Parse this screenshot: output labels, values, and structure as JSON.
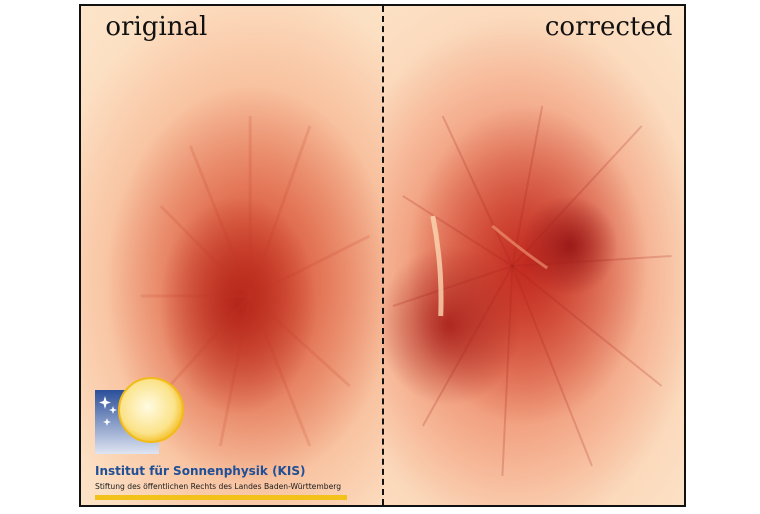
{
  "panels": {
    "left_title": "original",
    "right_title": "corrected"
  },
  "logo": {
    "institute_name": "Institut für Sonnenphysik (KIS)",
    "tagline": "Stiftung des öffentlichen Rechts des Landes Baden-Württemberg",
    "colors": {
      "name": "#1f4f97",
      "bar": "#f2c21b",
      "sun": "#f8c326"
    }
  },
  "colors": {
    "background_light": "#fde6cc",
    "umbra_dark": "#b22218",
    "penumbra": "#ee7c52",
    "frame": "#111111"
  }
}
